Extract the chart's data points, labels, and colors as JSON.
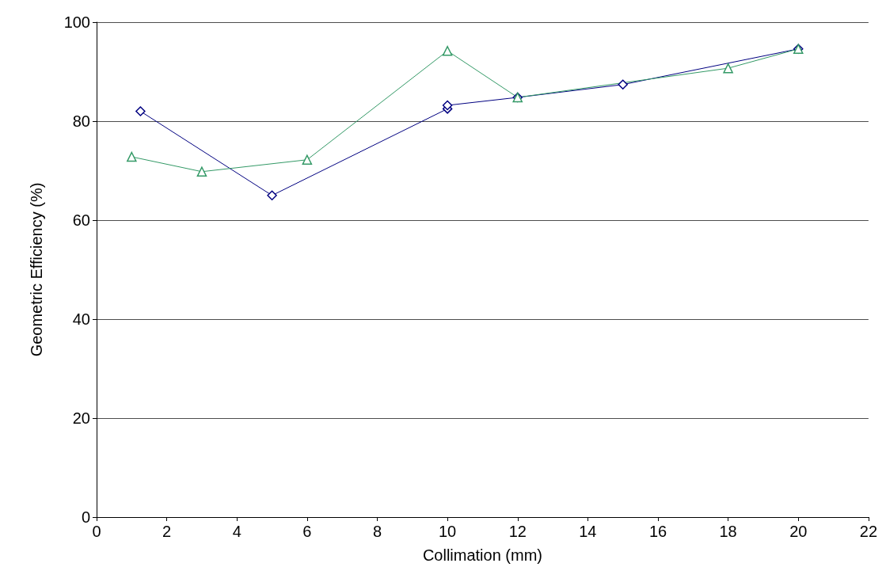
{
  "chart_data": {
    "type": "line",
    "xlabel": "Collimation (mm)",
    "ylabel": "Geometric Efficiency (%)",
    "xlim": [
      0,
      22
    ],
    "xticks": [
      0,
      2,
      4,
      6,
      8,
      10,
      12,
      14,
      16,
      18,
      20,
      22
    ],
    "ylim": [
      0,
      100
    ],
    "yticks": [
      0,
      20,
      40,
      60,
      80,
      100
    ],
    "grid": "y",
    "legend": false,
    "series": [
      {
        "color": "#000080",
        "marker": "diamond",
        "x": [
          1.25,
          5,
          10,
          10,
          12,
          15,
          20
        ],
        "values": [
          82,
          65,
          82.5,
          83.2,
          84.8,
          87.4,
          94.6
        ]
      },
      {
        "color": "#339966",
        "marker": "triangle",
        "x": [
          1,
          3,
          6,
          10,
          12,
          18,
          20
        ],
        "values": [
          72.8,
          69.8,
          72.2,
          94.2,
          84.8,
          90.7,
          94.6
        ]
      }
    ]
  }
}
